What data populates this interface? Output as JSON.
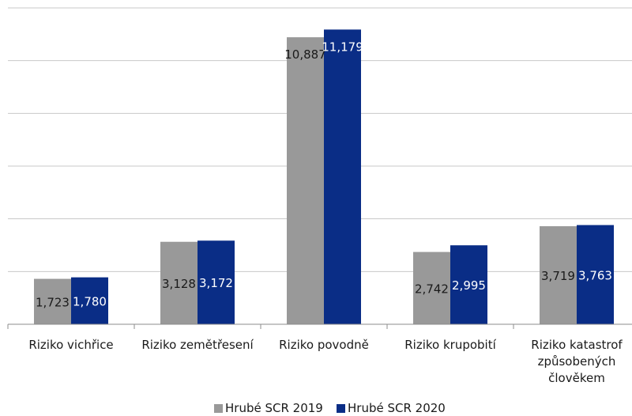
{
  "chart_data": {
    "type": "bar",
    "title": "",
    "xlabel": "",
    "ylabel": "",
    "ylim": [
      0,
      12000
    ],
    "grid": true,
    "legend_position": "bottom",
    "categories": [
      [
        "Riziko vichřice"
      ],
      [
        "Riziko zemětřesení"
      ],
      [
        "Riziko povodně"
      ],
      [
        "Riziko krupobití"
      ],
      [
        "Riziko katastrof",
        "způsobených",
        "člověkem"
      ]
    ],
    "series": [
      {
        "name": "Hrubé SCR 2019",
        "color": "#999999",
        "values": [
          1723,
          3128,
          10887,
          2742,
          3719
        ],
        "labels": [
          "1,723",
          "3,128",
          "10,887",
          "2,742",
          "3,719"
        ]
      },
      {
        "name": "Hrubé SCR 2020",
        "color": "#0a2d86",
        "values": [
          1780,
          3172,
          11179,
          2995,
          3763
        ],
        "labels": [
          "1,780",
          "3,172",
          "11,179",
          "2,995",
          "3,763"
        ]
      }
    ]
  }
}
